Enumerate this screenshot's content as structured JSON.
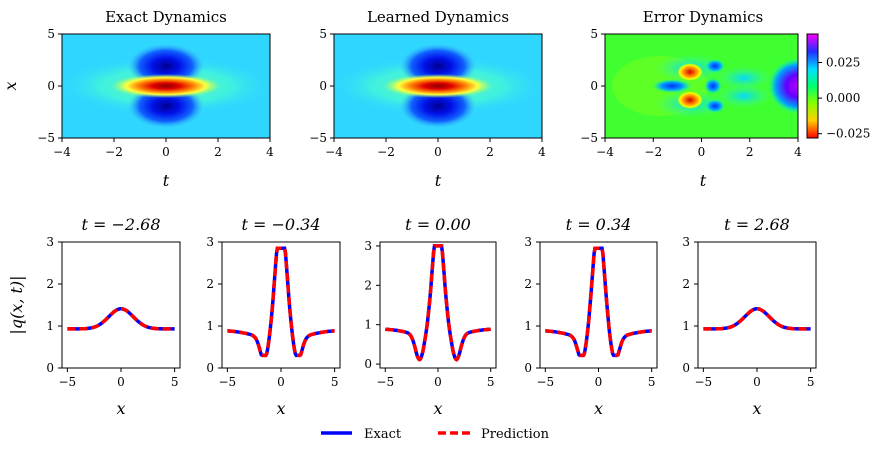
{
  "top_panels": [
    {
      "title": "Exact Dynamics",
      "xlabel": "t",
      "ylabel": "x"
    },
    {
      "title": "Learned Dynamics",
      "xlabel": "t",
      "ylabel": ""
    },
    {
      "title": "Error Dynamics",
      "xlabel": "t",
      "ylabel": ""
    }
  ],
  "colorbar": {
    "ticks": [
      "0.025",
      "0.000",
      "−0.025"
    ],
    "values": [
      0.025,
      0.0,
      -0.025
    ],
    "range": [
      -0.028,
      0.045
    ]
  },
  "bottom_panels": [
    {
      "title": "t = −2.68",
      "xlabel": "x"
    },
    {
      "title": "t = −0.34",
      "xlabel": "x"
    },
    {
      "title": "t = 0.00",
      "xlabel": "x"
    },
    {
      "title": "t = 0.34",
      "xlabel": "x"
    },
    {
      "title": "t = 2.68",
      "xlabel": "x"
    }
  ],
  "bottom_ylabel": "|q(x, t)|",
  "legend": {
    "exact_label": "Exact",
    "prediction_label": "Prediction",
    "exact_color": "#0000ff",
    "prediction_color": "#ff0000"
  },
  "chart_data": [
    {
      "type": "heatmap",
      "title": "Exact Dynamics",
      "xlabel": "t",
      "ylabel": "x",
      "xlim": [
        -4,
        4
      ],
      "ylim": [
        -5,
        5
      ],
      "xticks": [
        "−4",
        "−2",
        "0",
        "2",
        "4"
      ],
      "yticks": [
        "5",
        "0",
        "−5"
      ],
      "colormap": "jet"
    },
    {
      "type": "heatmap",
      "title": "Learned Dynamics",
      "xlabel": "t",
      "xlim": [
        -4,
        4
      ],
      "ylim": [
        -5,
        5
      ],
      "xticks": [
        "−4",
        "−2",
        "0",
        "2",
        "4"
      ],
      "yticks": [
        "5",
        "0",
        "−5"
      ],
      "colormap": "jet"
    },
    {
      "type": "heatmap",
      "title": "Error Dynamics",
      "xlabel": "t",
      "xlim": [
        -4,
        4
      ],
      "ylim": [
        -5,
        5
      ],
      "xticks": [
        "−4",
        "−2",
        "0",
        "2",
        "4"
      ],
      "yticks": [
        "5",
        "0",
        "−5"
      ],
      "colormap": "gist_rainbow"
    },
    {
      "type": "line",
      "title": "t = −2.68",
      "t": -2.68,
      "xlabel": "x",
      "ylabel": "|q(x,t)|",
      "xlim": [
        -5.5,
        5.5
      ],
      "ylim": [
        0,
        3
      ],
      "xticks": [
        "−5",
        "0",
        "5"
      ],
      "yticks": [
        "0",
        "1",
        "2",
        "3"
      ],
      "series": [
        {
          "name": "Exact",
          "x": [
            -5,
            -4,
            -3,
            -2,
            -1,
            0,
            1,
            2,
            3,
            4,
            5
          ],
          "values": [
            0.93,
            0.94,
            0.98,
            1.06,
            1.22,
            1.41,
            1.22,
            1.06,
            0.98,
            0.94,
            0.93
          ]
        }
      ]
    },
    {
      "type": "line",
      "title": "t = −0.34",
      "t": -0.34,
      "xlabel": "x",
      "xlim": [
        -5.5,
        5.5
      ],
      "ylim": [
        0,
        3
      ],
      "xticks": [
        "−5",
        "0",
        "5"
      ],
      "yticks": [
        "0",
        "1",
        "2",
        "3"
      ],
      "series": [
        {
          "name": "Exact",
          "x": [
            -5,
            -4,
            -3,
            -2,
            -1.5,
            -1,
            0,
            1,
            1.5,
            2,
            3,
            4,
            5
          ],
          "values": [
            0.86,
            0.8,
            0.7,
            0.42,
            0.32,
            0.9,
            2.85,
            0.9,
            0.32,
            0.42,
            0.7,
            0.8,
            0.86
          ]
        }
      ]
    },
    {
      "type": "line",
      "title": "t = 0.00",
      "t": 0.0,
      "xlabel": "x",
      "xlim": [
        -5.5,
        5.5
      ],
      "ylim": [
        -0.1,
        3.1
      ],
      "xticks": [
        "−5",
        "0",
        "5"
      ],
      "yticks": [
        "0",
        "1",
        "2",
        "3"
      ],
      "series": [
        {
          "name": "Exact",
          "x": [
            -5,
            -4,
            -3,
            -2,
            -1.75,
            -1,
            0,
            1,
            1.75,
            2,
            3,
            4,
            5
          ],
          "values": [
            0.86,
            0.8,
            0.62,
            0.22,
            0.0,
            1.2,
            3.0,
            1.2,
            0.0,
            0.22,
            0.62,
            0.8,
            0.86
          ]
        }
      ]
    },
    {
      "type": "line",
      "title": "t = 0.34",
      "t": 0.34,
      "xlabel": "x",
      "xlim": [
        -5.5,
        5.5
      ],
      "ylim": [
        0,
        3
      ],
      "xticks": [
        "−5",
        "0",
        "5"
      ],
      "yticks": [
        "0",
        "1",
        "2",
        "3"
      ],
      "series": [
        {
          "name": "Exact",
          "x": [
            -5,
            -4,
            -3,
            -2,
            -1.5,
            -1,
            0,
            1,
            1.5,
            2,
            3,
            4,
            5
          ],
          "values": [
            0.86,
            0.8,
            0.7,
            0.42,
            0.32,
            0.9,
            2.85,
            0.9,
            0.32,
            0.42,
            0.7,
            0.8,
            0.86
          ]
        }
      ]
    },
    {
      "type": "line",
      "title": "t = 2.68",
      "t": 2.68,
      "xlabel": "x",
      "xlim": [
        -5.5,
        5.5
      ],
      "ylim": [
        0,
        3
      ],
      "xticks": [
        "−5",
        "0",
        "5"
      ],
      "yticks": [
        "0",
        "1",
        "2",
        "3"
      ],
      "series": [
        {
          "name": "Exact",
          "x": [
            -5,
            -4,
            -3,
            -2,
            -1,
            0,
            1,
            2,
            3,
            4,
            5
          ],
          "values": [
            0.93,
            0.94,
            0.98,
            1.06,
            1.22,
            1.41,
            1.22,
            1.06,
            0.98,
            0.94,
            0.93
          ]
        }
      ]
    }
  ]
}
